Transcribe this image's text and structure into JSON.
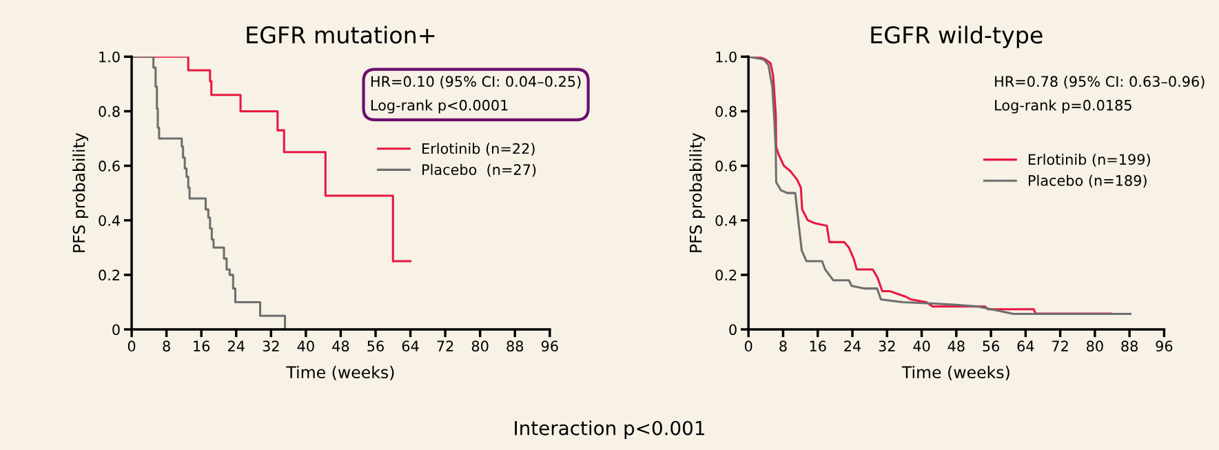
{
  "chart_data": [
    {
      "type": "step",
      "title": "EGFR mutation+",
      "xlabel": "Time (weeks)",
      "ylabel": "PFS probability",
      "annotations": [
        "HR=0.10 (95% CI: 0.04–0.25)\nLog-rank p<0.0001",
        "Interaction p<0.001"
      ],
      "series": [
        {
          "name": "Erlotinib (n=22)",
          "color": "#e8173f",
          "x": [
            0,
            13,
            18,
            18.3,
            25,
            33.5,
            35,
            44.5,
            60,
            64
          ],
          "values": [
            1,
            0.95,
            0.91,
            0.86,
            0.8,
            0.73,
            0.65,
            0.49,
            0.25,
            0.25
          ]
        },
        {
          "name": "Placebo  (n=27)",
          "color": "#6e6e6e",
          "x": [
            0,
            5,
            5.5,
            5.8,
            6,
            6.3,
            11.5,
            11.8,
            12.2,
            12.6,
            13,
            13.3,
            17,
            17.6,
            18,
            18.4,
            18.8,
            21.2,
            21.8,
            22.5,
            23.3,
            23.8,
            29.5,
            35.2
          ],
          "values": [
            1,
            0.96,
            0.89,
            0.81,
            0.74,
            0.7,
            0.67,
            0.63,
            0.59,
            0.56,
            0.52,
            0.48,
            0.44,
            0.41,
            0.37,
            0.33,
            0.3,
            0.26,
            0.22,
            0.2,
            0.15,
            0.1,
            0.05,
            0
          ]
        }
      ],
      "xlim": [
        0,
        96
      ],
      "xticks": [
        0,
        8,
        16,
        24,
        32,
        40,
        48,
        56,
        64,
        72,
        80,
        88,
        96
      ],
      "ylim": [
        0,
        1
      ],
      "yticks": [
        0,
        0.2,
        0.4,
        0.6,
        0.8,
        {
          "value": 1,
          "label": "1.0"
        }
      ],
      "grid": false,
      "legend": "right"
    },
    {
      "type": "line",
      "title": "EGFR wild-type",
      "xlabel": "Time (weeks)",
      "ylabel": "PFS probability",
      "annotations": [
        "HR=0.78 (95% CI: 0.63–0.96)\nLog-rank p=0.0185"
      ],
      "series": [
        {
          "name": "Erlotinib (n=199)",
          "color": "#e8173f",
          "x": [
            0,
            2.8,
            3.9,
            5.1,
            5.7,
            6.3,
            6.4,
            7.0,
            8.2,
            9.7,
            11.2,
            12.1,
            12.4,
            13.7,
            15.2,
            18.1,
            18.7,
            22.1,
            23.2,
            24.3,
            25.0,
            28.7,
            29.8,
            30.9,
            32.7,
            36.3,
            37.5,
            41.1,
            42.5,
            54.6,
            55.3,
            65.9,
            66.3,
            83.8
          ],
          "values": [
            1,
            0.997,
            0.99,
            0.976,
            0.93,
            0.79,
            0.67,
            0.64,
            0.6,
            0.58,
            0.55,
            0.52,
            0.44,
            0.4,
            0.39,
            0.38,
            0.32,
            0.32,
            0.3,
            0.26,
            0.22,
            0.22,
            0.19,
            0.14,
            0.14,
            0.12,
            0.11,
            0.1,
            0.084,
            0.084,
            0.074,
            0.074,
            0.058,
            0.058
          ]
        },
        {
          "name": "Placebo (n=189)",
          "color": "#6e6e6e",
          "x": [
            0,
            3.5,
            4.6,
            5.5,
            6.0,
            6.3,
            6.4,
            7.5,
            9.0,
            10.8,
            11.5,
            12.3,
            13.4,
            17.0,
            17.7,
            19.6,
            23.2,
            23.8,
            26.8,
            29.7,
            30.6,
            35.6,
            42.9,
            47.9,
            53.0,
            61.2,
            88.2
          ],
          "values": [
            1,
            0.99,
            0.97,
            0.89,
            0.76,
            0.66,
            0.54,
            0.51,
            0.5,
            0.5,
            0.4,
            0.29,
            0.25,
            0.25,
            0.22,
            0.18,
            0.18,
            0.16,
            0.15,
            0.15,
            0.11,
            0.1,
            0.095,
            0.09,
            0.084,
            0.057,
            0.057
          ]
        }
      ],
      "xlim": [
        0,
        96
      ],
      "xticks": [
        0,
        8,
        16,
        24,
        32,
        40,
        48,
        56,
        64,
        72,
        80,
        88,
        96
      ],
      "ylim": [
        0,
        1
      ],
      "yticks": [
        0,
        0.2,
        0.4,
        0.6,
        0.8,
        {
          "value": 1,
          "label": "1.0"
        }
      ],
      "grid": false,
      "legend": "right"
    }
  ]
}
